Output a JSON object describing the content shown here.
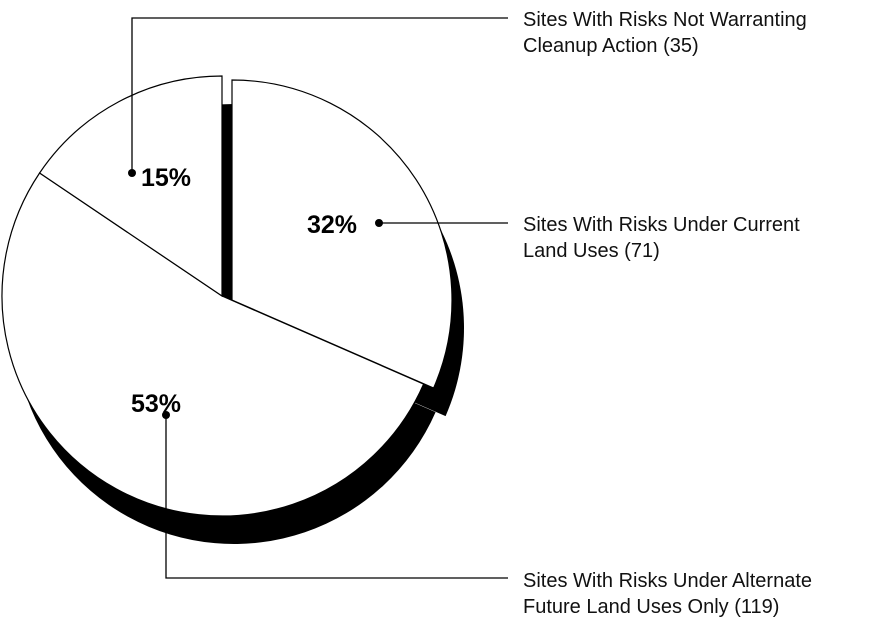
{
  "chart_data": {
    "type": "pie",
    "title": "",
    "slices": [
      {
        "label_line1": "Sites With Risks Under Current",
        "label_line2": "Land Uses (71)",
        "count": 71,
        "percent_label": "32%",
        "exploded": true
      },
      {
        "label_line1": "Sites With Risks Under Alternate",
        "label_line2": "Future Land Uses Only (119)",
        "count": 119,
        "percent_label": "53%",
        "exploded": false
      },
      {
        "label_line1": "Sites With Risks Not Warranting",
        "label_line2": "Cleanup Action (35)",
        "count": 35,
        "percent_label": "15%",
        "exploded": false
      }
    ],
    "style": {
      "slice_fill": "#ffffff",
      "outline": "#000000",
      "shadow": "#000000",
      "three_d_shadow": true
    }
  }
}
